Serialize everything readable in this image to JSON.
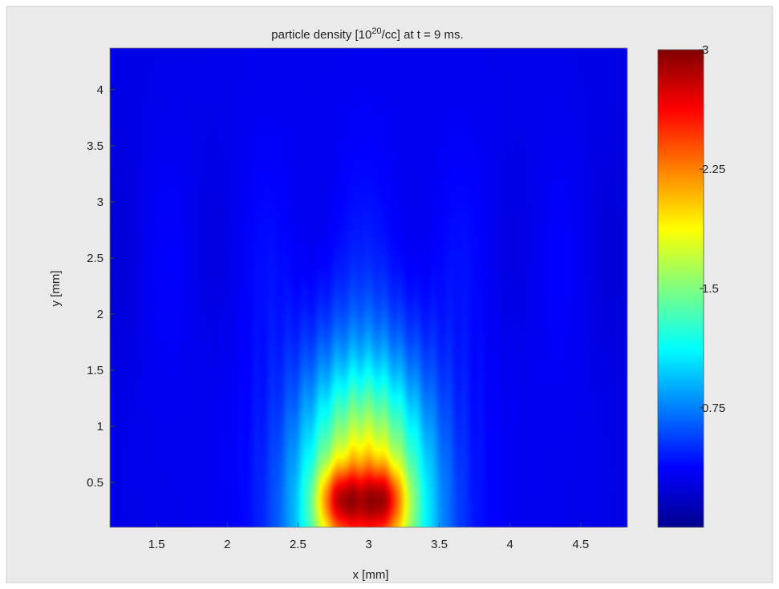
{
  "chart_data": {
    "type": "heatmap",
    "title": "particle density [10^20/cc] at t = 9 ms.",
    "title_parts": {
      "prefix": "particle density [10",
      "superscript": "20",
      "suffix": "/cc] at t = 9 ms."
    },
    "xlabel": "x [mm]",
    "ylabel": "y [mm]",
    "xlim": [
      1.17,
      4.83
    ],
    "ylim": [
      0.1,
      4.37
    ],
    "x_ticks": [
      1.5,
      2,
      2.5,
      3,
      3.5,
      4,
      4.5
    ],
    "x_tick_labels": [
      "1.5",
      "2",
      "2.5",
      "3",
      "3.5",
      "4",
      "4.5"
    ],
    "y_ticks": [
      0.5,
      1,
      1.5,
      2,
      2.5,
      3,
      3.5,
      4
    ],
    "y_tick_labels": [
      "0.5",
      "1",
      "1.5",
      "2",
      "2.5",
      "3",
      "3.5",
      "4"
    ],
    "colorbar": {
      "range": [
        0,
        3
      ],
      "ticks": [
        0.75,
        1.5,
        2.25,
        3
      ],
      "tick_labels": [
        "0.75",
        "1.5",
        "2.25",
        "3"
      ],
      "colormap": "jet"
    },
    "features": {
      "background_density": 0.3,
      "plume_center_x": 2.97,
      "plume_half_width_x": 0.5,
      "plume_height_y": 1.9,
      "peak_density": 2.85,
      "peaks": [
        {
          "x": 2.8,
          "y": 0.35,
          "value": 2.85
        },
        {
          "x": 3.1,
          "y": 0.35,
          "value": 2.8
        }
      ]
    },
    "grid": false,
    "legend": "colorbar-right"
  },
  "colors": {
    "background": "#ffffff",
    "figure_frame": "#eaeaea"
  }
}
